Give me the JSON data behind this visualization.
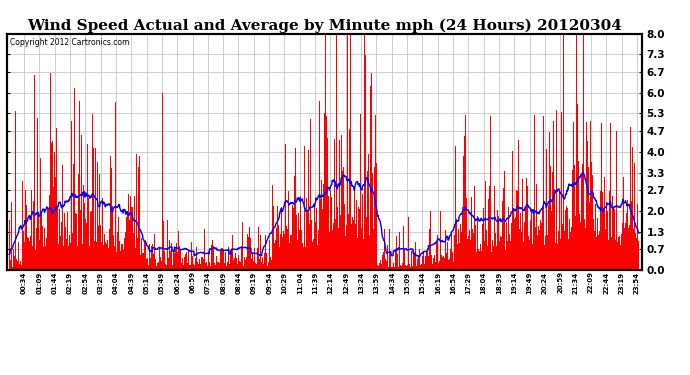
{
  "title": "Wind Speed Actual and Average by Minute mph (24 Hours) 20120304",
  "copyright": "Copyright 2012 Cartronics.com",
  "yticks": [
    0.0,
    0.7,
    1.3,
    2.0,
    2.7,
    3.3,
    4.0,
    4.7,
    5.3,
    6.0,
    6.7,
    7.3,
    8.0
  ],
  "ymax": 8.0,
  "ymin": 0.0,
  "bar_color": "#ff0000",
  "line_color": "#0000ff",
  "background_color": "#ffffff",
  "grid_color": "#bbbbbb",
  "title_fontsize": 11,
  "num_minutes": 1440,
  "xtick_interval": 35
}
